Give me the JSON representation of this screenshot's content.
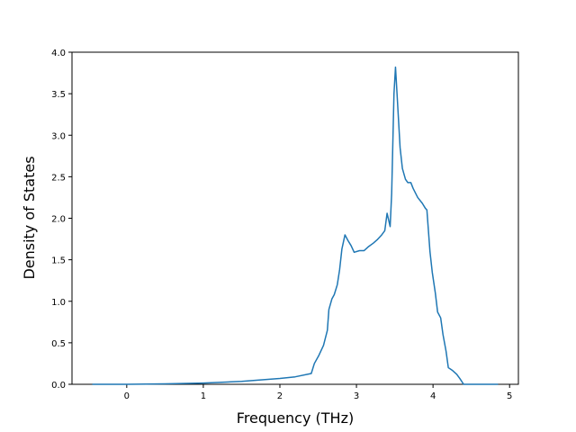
{
  "chart_data": {
    "type": "line",
    "xlabel": "Frequency (THz)",
    "ylabel": "Density of States",
    "x": [
      -0.45,
      0,
      0.5,
      1,
      1.5,
      2,
      2.2,
      2.41,
      2.45,
      2.51,
      2.57,
      2.62,
      2.64,
      2.68,
      2.71,
      2.75,
      2.78,
      2.81,
      2.85,
      2.89,
      2.93,
      2.97,
      3.04,
      3.1,
      3.16,
      3.22,
      3.27,
      3.33,
      3.37,
      3.4,
      3.44,
      3.46,
      3.49,
      3.51,
      3.53,
      3.57,
      3.6,
      3.64,
      3.67,
      3.71,
      3.74,
      3.8,
      3.86,
      3.9,
      3.92,
      3.96,
      3.99,
      4.03,
      4.06,
      4.1,
      4.13,
      4.17,
      4.2,
      4.25,
      4.31,
      4.35,
      4.4,
      4.85
    ],
    "series": [
      {
        "color": "#1f77b4",
        "values": [
          0,
          0,
          0.005,
          0.015,
          0.035,
          0.07,
          0.09,
          0.13,
          0.25,
          0.35,
          0.47,
          0.65,
          0.9,
          1.03,
          1.08,
          1.2,
          1.38,
          1.63,
          1.8,
          1.73,
          1.67,
          1.59,
          1.61,
          1.61,
          1.66,
          1.7,
          1.74,
          1.8,
          1.85,
          2.06,
          1.9,
          2.3,
          3.5,
          3.82,
          3.5,
          2.85,
          2.6,
          2.47,
          2.43,
          2.43,
          2.36,
          2.25,
          2.18,
          2.12,
          2.1,
          1.6,
          1.35,
          1.1,
          0.87,
          0.8,
          0.6,
          0.4,
          0.2,
          0.17,
          0.12,
          0.07,
          0,
          0
        ]
      }
    ],
    "xlim": [
      -0.715,
      5.115
    ],
    "xticks": [
      0,
      1,
      2,
      3,
      4,
      5
    ],
    "ylim": [
      0,
      4
    ],
    "yticks": [
      {
        "value": 0,
        "label": "0.0"
      },
      {
        "value": 0.5,
        "label": "0.5"
      },
      {
        "value": 1,
        "label": "1.0"
      },
      {
        "value": 1.5,
        "label": "1.5"
      },
      {
        "value": 2,
        "label": "2.0"
      },
      {
        "value": 2.5,
        "label": "2.5"
      },
      {
        "value": 3,
        "label": "3.0"
      },
      {
        "value": 3.5,
        "label": "3.5"
      },
      {
        "value": 4,
        "label": "4.0"
      }
    ]
  }
}
